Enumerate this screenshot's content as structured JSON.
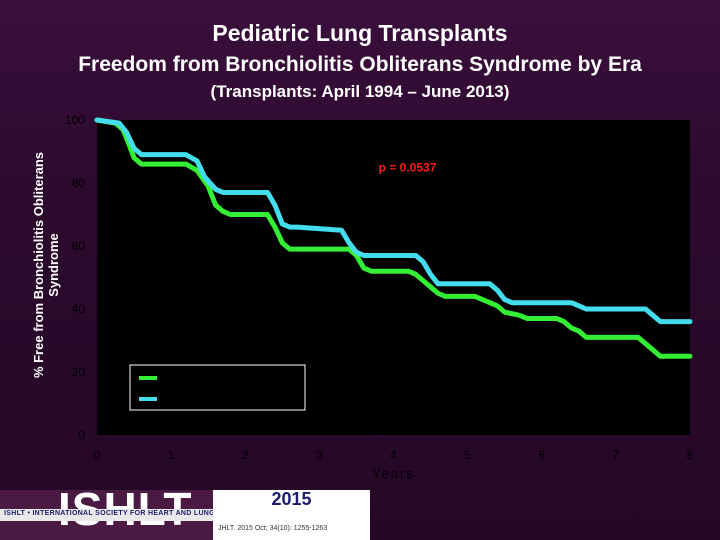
{
  "header": {
    "title": "Pediatric Lung Transplants",
    "subtitle": "Freedom from Bronchiolitis Obliterans Syndrome by Era",
    "subsubtitle": "(Transplants: April 1994 – June 2013)"
  },
  "chart_data": {
    "type": "line",
    "title": "Freedom from Bronchiolitis Obliterans Syndrome by Era",
    "xlabel": "Years",
    "ylabel_line1": "% Free from Bronchiolitis Obliterans",
    "ylabel_line2": "Syndrome",
    "xlim": [
      0,
      8
    ],
    "ylim": [
      0,
      100
    ],
    "xticks": [
      "0",
      "1",
      "2",
      "3",
      "4",
      "5",
      "6",
      "7",
      "8"
    ],
    "yticks": [
      "0",
      "20",
      "40",
      "60",
      "80",
      "100"
    ],
    "annotation": "p = 0.0537",
    "legend_placement": "bottom-left",
    "series": [
      {
        "name": "",
        "color": "#33ee33",
        "x": [
          0,
          0.25,
          0.35,
          0.42,
          0.5,
          0.6,
          0.7,
          1.2,
          1.35,
          1.5,
          1.6,
          1.7,
          1.8,
          2.3,
          2.4,
          2.5,
          2.6,
          2.7,
          3.4,
          3.5,
          3.6,
          3.7,
          4.0,
          4.2,
          4.3,
          4.4,
          4.5,
          4.6,
          4.7,
          5.1,
          5.3,
          5.4,
          5.5,
          5.7,
          5.8,
          6.2,
          6.3,
          6.4,
          6.5,
          6.6,
          7.3,
          7.4,
          7.5,
          7.6,
          8.0
        ],
        "y": [
          100,
          99,
          97,
          93,
          88,
          86,
          86,
          86,
          84,
          79,
          73,
          71,
          70,
          70,
          66,
          61,
          59,
          59,
          59,
          57,
          53,
          52,
          52,
          52,
          51,
          49,
          47,
          45,
          44,
          44,
          42,
          41,
          39,
          38,
          37,
          37,
          36,
          34,
          33,
          31,
          31,
          29,
          27,
          25,
          25
        ]
      },
      {
        "name": "",
        "color": "#44ddee",
        "x": [
          0,
          0.3,
          0.4,
          0.5,
          0.6,
          0.7,
          1.2,
          1.35,
          1.45,
          1.6,
          1.7,
          1.8,
          2.3,
          2.4,
          2.5,
          2.6,
          2.7,
          3.3,
          3.4,
          3.5,
          3.6,
          3.7,
          4.3,
          4.4,
          4.5,
          4.6,
          5.3,
          5.4,
          5.5,
          5.6,
          6.4,
          6.5,
          6.6,
          7.4,
          7.5,
          7.6,
          8.0
        ],
        "y": [
          100,
          99,
          96,
          91,
          89,
          89,
          89,
          87,
          82,
          78,
          77,
          77,
          77,
          73,
          67,
          66,
          66,
          65,
          61,
          58,
          57,
          57,
          57,
          55,
          51,
          48,
          48,
          46,
          43,
          42,
          42,
          41,
          40,
          40,
          38,
          36,
          36
        ]
      }
    ]
  },
  "footer": {
    "logo_text": "ISHLT",
    "society_name": "ISHLT • INTERNATIONAL SOCIETY FOR HEART AND LUNG TRANSPLANTATION",
    "year": "2015",
    "citation": "JHLT. 2015 Oct; 34(10): 1255-1263"
  }
}
